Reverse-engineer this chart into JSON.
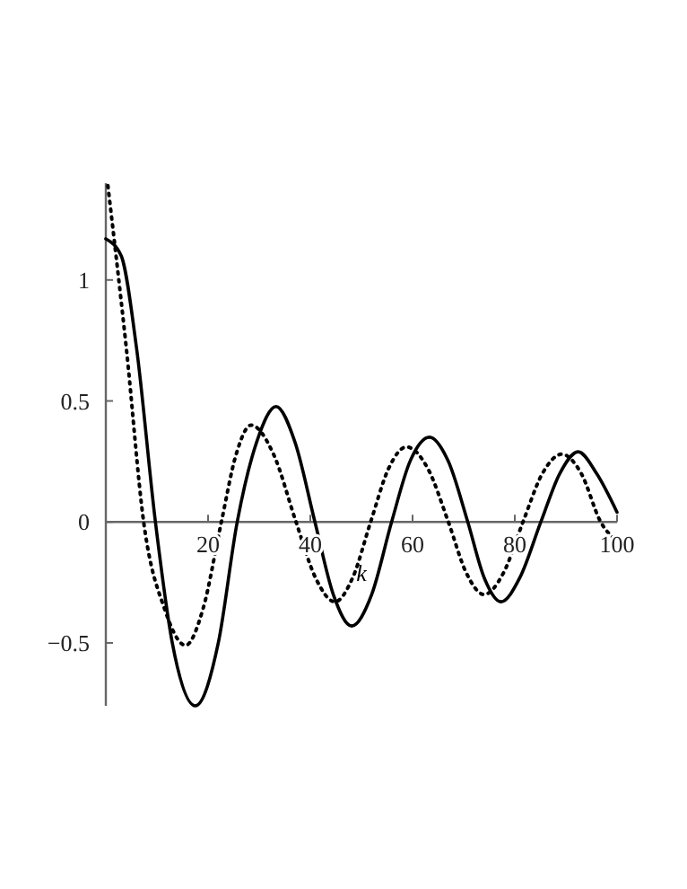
{
  "chart_data": {
    "type": "line",
    "xlabel": "k",
    "xlim": [
      0,
      100
    ],
    "ylim": [
      -0.76,
      1.4
    ],
    "xticks": [
      20,
      40,
      60,
      80,
      100
    ],
    "yticks": [
      -0.5,
      0,
      0.5,
      1
    ],
    "grid": false,
    "series": [
      {
        "color": "#000000",
        "line_style": "solid",
        "x": [
          0,
          3,
          6,
          9.7,
          13,
          17.5,
          22,
          25.7,
          29.5,
          33.3,
          37,
          40.9,
          44.5,
          48.1,
          52,
          55.9,
          59.5,
          63.3,
          67,
          70.8,
          74,
          77.3,
          81,
          85.1,
          88.8,
          92.4,
          96,
          100
        ],
        "values": [
          1.17,
          1.1,
          0.72,
          0,
          -0.5,
          -0.76,
          -0.5,
          0,
          0.33,
          0.477,
          0.33,
          0,
          -0.3,
          -0.43,
          -0.3,
          0,
          0.25,
          0.35,
          0.25,
          0,
          -0.23,
          -0.33,
          -0.23,
          0,
          0.2,
          0.29,
          0.2,
          0.04
        ]
      },
      {
        "color": "#000000",
        "line_style": "dotted",
        "x": [
          0.4,
          2,
          4,
          7.4,
          11.5,
          15.6,
          19,
          22.6,
          25.5,
          28.4,
          32.8,
          37.2,
          41,
          44.8,
          48.3,
          51.8,
          55.3,
          58.8,
          63,
          67,
          70.5,
          74,
          77.8,
          81.6,
          85.4,
          89.2,
          93,
          96.8,
          100
        ],
        "values": [
          1.39,
          1.1,
          0.72,
          0,
          -0.36,
          -0.51,
          -0.36,
          0,
          0.28,
          0.4,
          0.28,
          0,
          -0.23,
          -0.33,
          -0.23,
          0,
          0.22,
          0.31,
          0.22,
          0,
          -0.21,
          -0.3,
          -0.21,
          0,
          0.2,
          0.28,
          0.2,
          0,
          -0.08
        ]
      }
    ]
  }
}
